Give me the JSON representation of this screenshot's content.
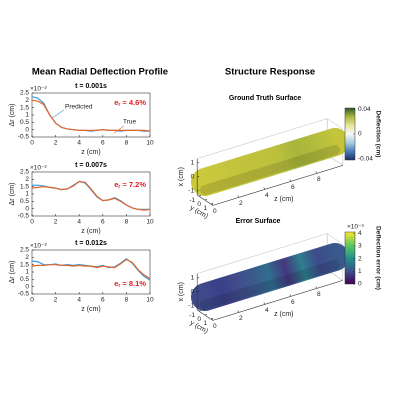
{
  "panels": {
    "left_title": "Mean Radial Deflection Profile",
    "right_title": "Structure Response"
  },
  "chart_data": [
    {
      "type": "line",
      "title": "t = 0.001s",
      "x_label": "z (cm)",
      "y_label": "Δr (cm)",
      "y_exponent": "×10⁻²",
      "error_symbol": "e",
      "error_subscript": "r",
      "error_text": " = 4.6%",
      "x": [
        0,
        0.5,
        1,
        1.5,
        2,
        2.5,
        3,
        3.5,
        4,
        4.5,
        5,
        5.5,
        6,
        6.5,
        7,
        7.5,
        8,
        8.5,
        9,
        9.5,
        10
      ],
      "series": [
        {
          "name": "Predicted",
          "color": "#3b9be0",
          "values": [
            2.25,
            2.15,
            1.8,
            1.0,
            0.45,
            0.15,
            0.05,
            0,
            -0.05,
            -0.05,
            -0.1,
            -0.05,
            0,
            -0.05,
            -0.05,
            -0.1,
            -0.05,
            -0.05,
            -0.05,
            -0.1,
            -0.1
          ]
        },
        {
          "name": "True",
          "color": "#e0662a",
          "values": [
            2.0,
            1.95,
            1.7,
            1.0,
            0.45,
            0.15,
            0.05,
            0,
            -0.05,
            -0.05,
            -0.05,
            -0.05,
            0,
            -0.05,
            -0.05,
            -0.05,
            -0.05,
            -0.05,
            -0.05,
            -0.05,
            -0.1
          ]
        }
      ],
      "xlim": [
        0,
        10
      ],
      "xticks": [
        0,
        2,
        4,
        6,
        8,
        10
      ],
      "ylim": [
        -0.5,
        2.5
      ],
      "yticks": [
        -0.5,
        0,
        0.5,
        1,
        1.5,
        2,
        2.5
      ]
    },
    {
      "type": "line",
      "title": "t = 0.007s",
      "x_label": "z (cm)",
      "y_label": "Δr (cm)",
      "y_exponent": "×10⁻²",
      "error_symbol": "e",
      "error_subscript": "r",
      "error_text": " = 7.2%",
      "x": [
        0,
        0.5,
        1,
        1.5,
        2,
        2.5,
        3,
        3.5,
        4,
        4.5,
        5,
        5.5,
        6,
        6.5,
        7,
        7.5,
        8,
        8.5,
        9,
        9.5,
        10
      ],
      "series": [
        {
          "color": "#3b9be0",
          "values": [
            1.6,
            1.6,
            1.55,
            1.45,
            1.4,
            1.3,
            1.35,
            1.6,
            1.85,
            1.75,
            1.3,
            0.8,
            0.55,
            0.6,
            0.75,
            0.55,
            0.25,
            0.05,
            -0.05,
            -0.05,
            -0.05
          ]
        },
        {
          "color": "#e0662a",
          "values": [
            1.4,
            1.45,
            1.5,
            1.45,
            1.4,
            1.3,
            1.35,
            1.55,
            1.85,
            1.8,
            1.35,
            0.85,
            0.55,
            0.6,
            0.7,
            0.5,
            0.25,
            0.05,
            -0.05,
            -0.1,
            -0.05
          ]
        }
      ],
      "xlim": [
        0,
        10
      ],
      "xticks": [
        0,
        2,
        4,
        6,
        8,
        10
      ],
      "ylim": [
        -0.5,
        2.5
      ],
      "yticks": [
        -0.5,
        0,
        0.5,
        1,
        1.5,
        2,
        2.5
      ]
    },
    {
      "type": "line",
      "title": "t = 0.012s",
      "x_label": "z (cm)",
      "y_label": "Δr (cm)",
      "y_exponent": "×10⁻²",
      "error_symbol": "e",
      "error_subscript": "r",
      "error_text": " = 8.1%",
      "x": [
        0,
        0.5,
        1,
        1.5,
        2,
        2.5,
        3,
        3.5,
        4,
        4.5,
        5,
        5.5,
        6,
        6.5,
        7,
        7.5,
        8,
        8.5,
        9,
        9.5,
        10
      ],
      "series": [
        {
          "color": "#3b9be0",
          "values": [
            1.75,
            1.7,
            1.5,
            1.5,
            1.55,
            1.45,
            1.5,
            1.45,
            1.5,
            1.45,
            1.4,
            1.35,
            1.45,
            1.3,
            1.35,
            1.6,
            1.9,
            1.6,
            1.1,
            0.7,
            0.45
          ]
        },
        {
          "color": "#e0662a",
          "values": [
            1.4,
            1.45,
            1.45,
            1.5,
            1.5,
            1.45,
            1.45,
            1.4,
            1.45,
            1.4,
            1.4,
            1.3,
            1.4,
            1.35,
            1.3,
            1.55,
            1.85,
            1.65,
            1.15,
            0.8,
            0.55
          ]
        }
      ],
      "xlim": [
        0,
        10
      ],
      "xticks": [
        0,
        2,
        4,
        6,
        8,
        10
      ],
      "ylim": [
        -0.5,
        2.5
      ],
      "yticks": [
        -0.5,
        0,
        0.5,
        1,
        1.5,
        2,
        2.5
      ]
    },
    {
      "type": "surface",
      "title": "Ground Truth Surface",
      "title_color": "#000000",
      "x_label": "x (cm)",
      "y_label": "y (cm)",
      "z_label": "z (cm)",
      "xticks": [
        -1,
        0,
        1
      ],
      "yticks": [
        -1,
        0,
        1
      ],
      "zticks": [
        0,
        2,
        4,
        6,
        8
      ],
      "surface_colors": [
        "#cbc83c",
        "#c6c53c",
        "#c2c33c",
        "#c0c23d",
        "#bbc03d",
        "#a7b63c",
        "#b3bb3d",
        "#c3c43c"
      ],
      "colorbar": {
        "label": "Deflection (cm)",
        "lim": [
          -0.042,
          0.042
        ],
        "ticks": [
          -0.04,
          0,
          0.04
        ],
        "colormap": [
          "#1e2f6b",
          "#4a7bb7",
          "#a9cde0",
          "#f7f7f7",
          "#e8e49a",
          "#a7b83b",
          "#2d5a2d"
        ]
      }
    },
    {
      "type": "surface",
      "title": "Error Surface",
      "title_color": "#e02020",
      "x_label": "x (cm)",
      "y_label": "y (cm)",
      "z_label": "z (cm)",
      "xticks": [
        -1,
        0,
        1
      ],
      "yticks": [
        -1,
        0,
        1
      ],
      "zticks": [
        0,
        2,
        4,
        6,
        8
      ],
      "surface_colors": [
        "#3e4a8a",
        "#3b3f88",
        "#414b8b",
        "#3b5a8c",
        "#2f6e8e",
        "#45367f",
        "#2d7f8e",
        "#3f4a8a",
        "#39598c"
      ],
      "colorbar": {
        "label": "Deflection error (cm)",
        "exponent": "×10⁻³",
        "lim": [
          0,
          4.1
        ],
        "ticks": [
          0,
          1,
          2,
          3,
          4
        ],
        "colormap": [
          "#440154",
          "#3b528b",
          "#21918c",
          "#5ec962",
          "#fde725"
        ]
      }
    }
  ]
}
